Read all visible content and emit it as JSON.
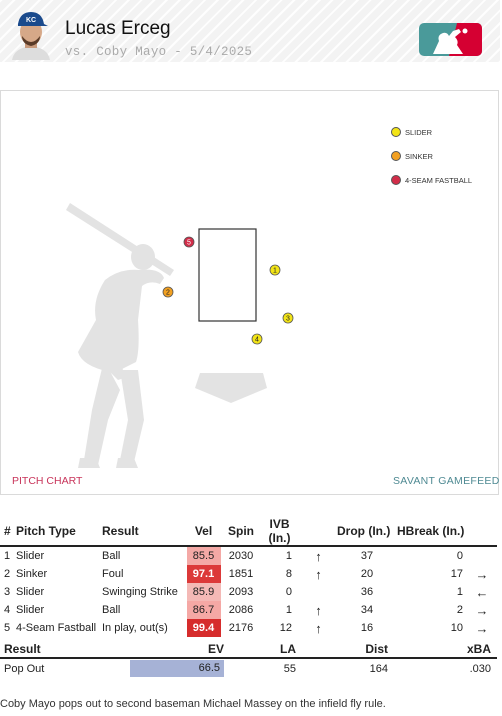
{
  "header": {
    "player_name": "Lucas Erceg",
    "matchup": "vs. Coby Mayo - 5/4/2025",
    "avatar_icon": "player-headshot",
    "cap_letters": "KC",
    "logo_icon": "mlb-logo",
    "colors": {
      "cap": "#1a4a8c",
      "logo_red": "#d50032",
      "logo_teal": "#4a9a9a"
    }
  },
  "chart": {
    "legend": [
      {
        "label": "SLIDER",
        "color": "#f2e416"
      },
      {
        "label": "SINKER",
        "color": "#f2a021"
      },
      {
        "label": "4-SEAM FASTBALL",
        "color": "#d22d49"
      }
    ],
    "pitches": [
      {
        "n": "1",
        "type": "Slider",
        "color": "#f2e416"
      },
      {
        "n": "2",
        "type": "Sinker",
        "color": "#f2a021"
      },
      {
        "n": "3",
        "type": "Slider",
        "color": "#f2e416"
      },
      {
        "n": "4",
        "type": "Slider",
        "color": "#f2e416"
      },
      {
        "n": "5",
        "type": "4-Seam Fastball",
        "color": "#d22d49"
      }
    ],
    "link_left": "PITCH CHART",
    "link_right": "SAVANT GAMEFEED"
  },
  "pitch_table": {
    "headers": [
      "#",
      "Pitch Type",
      "Result",
      "Vel",
      "Spin",
      "IVB (In.)",
      "",
      "Drop (In.)",
      "HBreak (In.)",
      ""
    ],
    "rows": [
      {
        "num": "1",
        "type": "Slider",
        "result": "Ball",
        "vel": "85.5",
        "vel_color": "#f4a9a6",
        "spin": "2030",
        "ivb": "1",
        "ivb_arrow": "↑",
        "drop": "37",
        "hbreak": "0",
        "h_arrow": ""
      },
      {
        "num": "2",
        "type": "Sinker",
        "result": "Foul",
        "vel": "97.1",
        "vel_color": "#dc3939",
        "spin": "1851",
        "ivb": "8",
        "ivb_arrow": "↑",
        "drop": "20",
        "hbreak": "17",
        "h_arrow": "→"
      },
      {
        "num": "3",
        "type": "Slider",
        "result": "Swinging Strike",
        "vel": "85.9",
        "vel_color": "#f4b9b6",
        "spin": "2093",
        "ivb": "0",
        "ivb_arrow": "",
        "drop": "36",
        "hbreak": "1",
        "h_arrow": "←"
      },
      {
        "num": "4",
        "type": "Slider",
        "result": "Ball",
        "vel": "86.7",
        "vel_color": "#f5a8a5",
        "spin": "2086",
        "ivb": "1",
        "ivb_arrow": "↑",
        "drop": "34",
        "hbreak": "2",
        "h_arrow": "→"
      },
      {
        "num": "5",
        "type": "4-Seam Fastball",
        "result": "In play, out(s)",
        "vel": "99.4",
        "vel_color": "#d62c2c",
        "spin": "2176",
        "ivb": "12",
        "ivb_arrow": "↑",
        "drop": "16",
        "hbreak": "10",
        "h_arrow": "→"
      }
    ]
  },
  "result_table": {
    "headers": [
      "Result",
      "EV",
      "LA",
      "Dist",
      "xBA"
    ],
    "row": {
      "result": "Pop Out",
      "ev": "66.5",
      "ev_color": "#a6b2d6",
      "la": "55",
      "dist": "164",
      "xba": ".030"
    }
  },
  "description": "Coby Mayo pops out to second baseman Michael Massey on the infield fly rule."
}
